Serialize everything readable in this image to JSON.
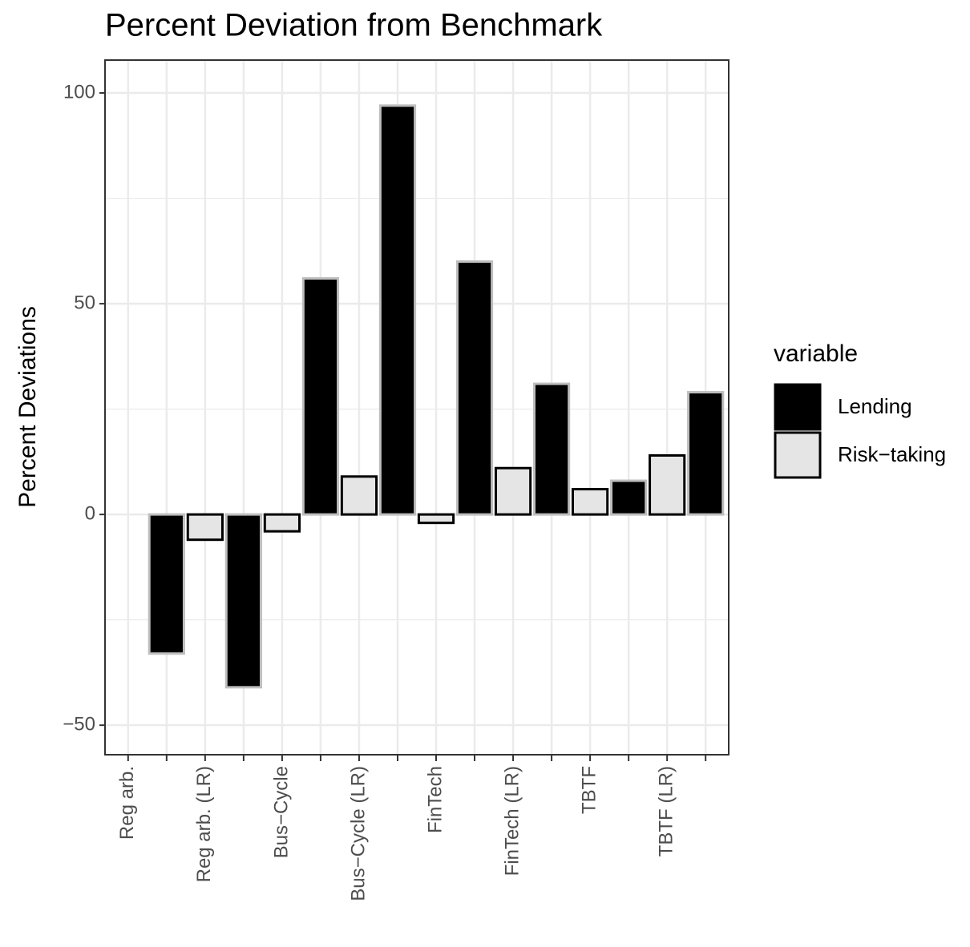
{
  "chart_data": {
    "type": "bar",
    "title": "Percent Deviation from Benchmark",
    "y_label": "Percent Deviations",
    "legend_title": "variable",
    "categories": [
      "Reg arb.",
      null,
      "Reg arb. (LR)",
      null,
      "Bus−Cycle",
      null,
      "Bus−Cycle (LR)",
      null,
      "FinTech",
      null,
      "FinTech (LR)",
      null,
      "TBTF",
      null,
      "TBTF (LR)",
      null
    ],
    "series": [
      {
        "name": "Lending",
        "color": "#000000",
        "stroke": "#bebebe",
        "values": [
          0,
          -33,
          0,
          -41,
          0,
          56,
          0,
          97,
          0,
          60,
          0,
          31,
          0,
          8,
          0,
          29
        ]
      },
      {
        "name": "Risk−taking",
        "color": "#e5e5e5",
        "stroke": "#000000",
        "values": [
          0,
          0,
          -6,
          0,
          -4,
          0,
          9,
          0,
          -2,
          0,
          11,
          0,
          6,
          0,
          14,
          0
        ]
      }
    ],
    "ylim": [
      -57,
      107.8
    ],
    "yticks": [
      {
        "value": -50,
        "label": "−50"
      },
      0,
      50,
      100
    ],
    "grid": true,
    "minor_grid": true,
    "legend": "right"
  }
}
